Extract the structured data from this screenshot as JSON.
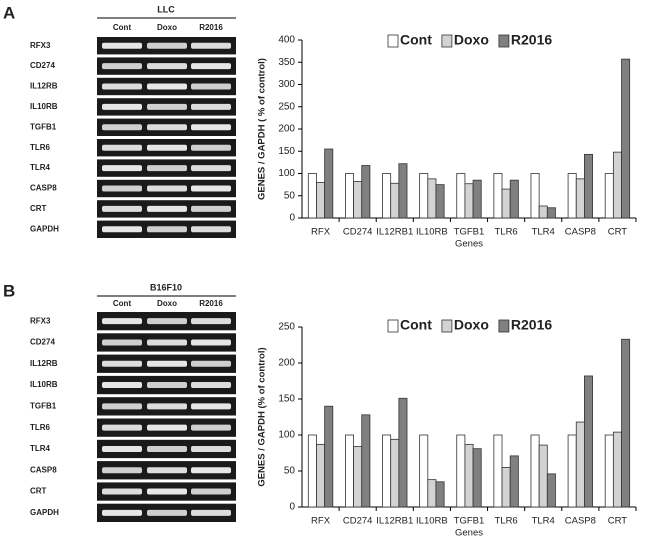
{
  "panels": [
    {
      "letter": "A",
      "gel": {
        "title": "LLC",
        "lanes": [
          "Cont",
          "Doxo",
          "R2016"
        ],
        "genes": [
          "RFX3",
          "CD274",
          "IL12RB",
          "IL10RB",
          "TGFB1",
          "TLR6",
          "TLR4",
          "CASP8",
          "CRT",
          "GAPDH"
        ]
      }
    },
    {
      "letter": "B",
      "gel": {
        "title": "B16F10",
        "lanes": [
          "Cont",
          "Doxo",
          "R2016"
        ],
        "genes": [
          "RFX3",
          "CD274",
          "IL12RB",
          "IL10RB",
          "TGFB1",
          "TLR6",
          "TLR4",
          "CASP8",
          "CRT",
          "GAPDH"
        ]
      }
    }
  ],
  "chart_data": [
    {
      "type": "bar",
      "x_label": "Genes",
      "y_label": "GENES / GAPDH ( % of control)",
      "categories": [
        "RFX",
        "CD274",
        "IL12RB1",
        "IL10RB",
        "TGFB1",
        "TLR6",
        "TLR4",
        "CASP8",
        "CRT"
      ],
      "series": [
        {
          "name": "Cont",
          "color": "#ffffff",
          "values": [
            100,
            100,
            100,
            100,
            100,
            100,
            100,
            100,
            100
          ]
        },
        {
          "name": "Doxo",
          "color": "#d3d3d3",
          "values": [
            80,
            82,
            78,
            88,
            77,
            65,
            27,
            88,
            148
          ]
        },
        {
          "name": "R2016",
          "color": "#808080",
          "values": [
            155,
            118,
            122,
            75,
            85,
            85,
            23,
            143,
            357
          ]
        }
      ],
      "ylim": [
        0,
        400
      ],
      "yticks": [
        0,
        50,
        100,
        150,
        200,
        250,
        300,
        350,
        400
      ],
      "legend": "top",
      "grid": false
    },
    {
      "type": "bar",
      "x_label": "Genes",
      "y_label": "GENES / GAPDH (% of control)",
      "categories": [
        "RFX",
        "CD274",
        "IL12RB1",
        "IL10RB",
        "TGFB1",
        "TLR6",
        "TLR4",
        "CASP8",
        "CRT"
      ],
      "series": [
        {
          "name": "Cont",
          "color": "#ffffff",
          "values": [
            100,
            100,
            100,
            100,
            100,
            100,
            100,
            100,
            100
          ]
        },
        {
          "name": "Doxo",
          "color": "#d3d3d3",
          "values": [
            87,
            84,
            94,
            38,
            87,
            55,
            86,
            118,
            104
          ]
        },
        {
          "name": "R2016",
          "color": "#808080",
          "values": [
            140,
            128,
            151,
            35,
            81,
            71,
            46,
            182,
            233
          ]
        }
      ],
      "ylim": [
        0,
        250
      ],
      "yticks": [
        0,
        50,
        100,
        150,
        200,
        250
      ],
      "legend": "top",
      "grid": false
    }
  ]
}
